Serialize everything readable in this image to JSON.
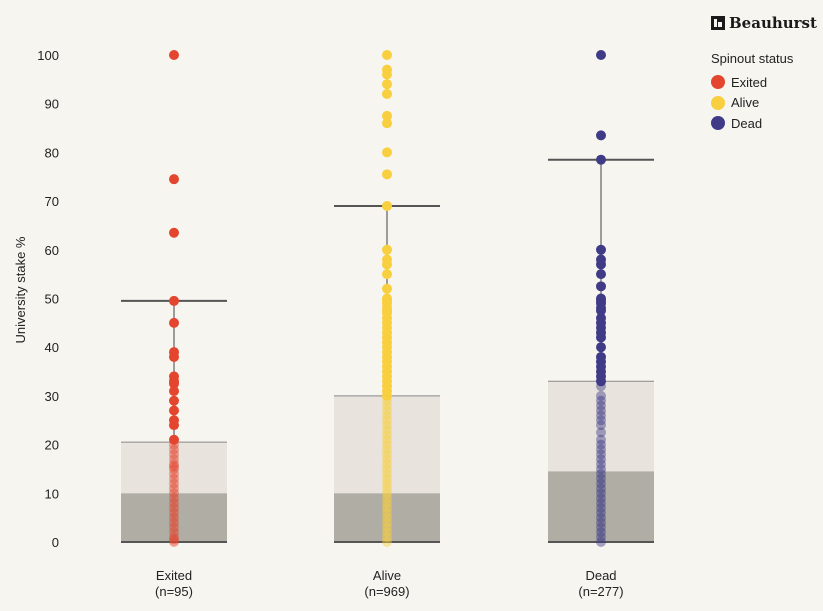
{
  "brand": {
    "name": "Beauhurst",
    "logo_icon": "beauhurst-logo-icon"
  },
  "legend": {
    "title": "Spinout status",
    "items": [
      {
        "label": "Exited",
        "color": "#e4452f"
      },
      {
        "label": "Alive",
        "color": "#f8cf3e"
      },
      {
        "label": "Dead",
        "color": "#403b87"
      }
    ]
  },
  "chart_data": {
    "type": "scatter",
    "ylabel": "University stake %",
    "xlabel": "",
    "ylim": [
      0,
      100
    ],
    "yticks": [
      0,
      10,
      20,
      30,
      40,
      50,
      60,
      70,
      80,
      90,
      100
    ],
    "grid": false,
    "legend_position": "top-right",
    "categories": [
      {
        "label": "Exited",
        "n_label": "(n=95)",
        "color": "#e4452f",
        "box": {
          "min": 0,
          "q1": 0,
          "median": 10,
          "q3": 20.5,
          "max": 49.5
        },
        "points": [
          100,
          74.5,
          63.5,
          49.5,
          45,
          39,
          38,
          34,
          33,
          32.5,
          31,
          29,
          27,
          25,
          24,
          21,
          20,
          19,
          18,
          17,
          16,
          15.5,
          15,
          14,
          13,
          12,
          11,
          10,
          9,
          8,
          7,
          6,
          5,
          4,
          3,
          2,
          1,
          0.5,
          0
        ]
      },
      {
        "label": "Alive",
        "n_label": "(n=969)",
        "color": "#f8cf3e",
        "box": {
          "min": 0,
          "q1": 0,
          "median": 10,
          "q3": 30,
          "max": 69
        },
        "points": [
          100,
          97,
          96,
          94,
          92,
          87.5,
          86,
          80,
          75.5,
          69,
          60,
          58,
          57,
          55,
          52,
          50,
          49.5,
          49,
          48,
          47.5,
          47,
          46,
          45,
          44,
          43,
          42,
          41,
          40,
          39,
          38,
          37,
          36,
          35,
          34,
          33,
          32,
          31,
          30,
          29,
          28,
          27,
          26,
          25,
          24,
          23,
          22,
          21,
          20,
          19,
          18,
          17,
          16,
          15,
          14,
          13,
          12,
          11,
          10,
          9,
          8,
          7,
          6,
          5,
          4,
          3,
          2,
          1,
          0
        ]
      },
      {
        "label": "Dead",
        "n_label": "(n=277)",
        "color": "#403b87",
        "box": {
          "min": 0,
          "q1": 0,
          "median": 14.5,
          "q3": 33,
          "max": 78.5
        },
        "points": [
          100,
          83.5,
          78.5,
          60,
          58,
          57,
          55,
          52.5,
          50,
          49.5,
          49,
          48,
          47.5,
          46,
          45,
          44,
          43,
          42,
          40,
          38,
          37,
          36,
          35,
          34,
          33,
          32,
          30,
          29,
          28,
          27,
          26,
          25,
          24,
          22.5,
          21,
          20,
          19,
          18,
          17,
          16,
          15,
          14,
          13,
          12,
          11,
          10,
          9,
          8,
          7,
          6,
          5,
          4,
          3,
          2,
          1,
          0
        ]
      }
    ]
  }
}
